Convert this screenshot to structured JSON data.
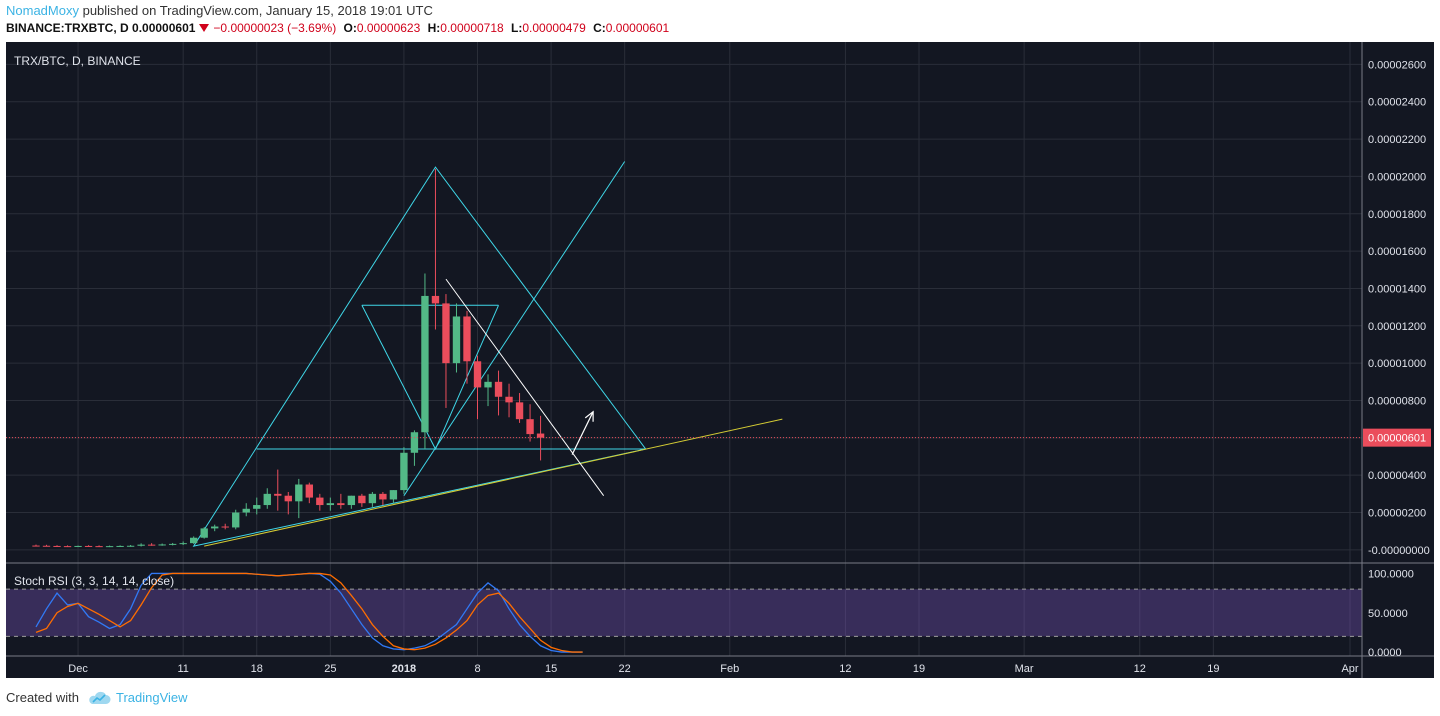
{
  "header": {
    "author": "NomadMoxy",
    "published_text": "published on TradingView.com, January 15, 2018 19:01 UTC",
    "symbol": "BINANCE:TRXBTC, D",
    "last_price": "0.00000601",
    "change": "−0.00000023 (−3.69%)",
    "open_label": "O:",
    "open_value": "0.00000623",
    "high_label": "H:",
    "high_value": "0.00000718",
    "low_label": "L:",
    "low_value": "0.00000479",
    "close_label": "C:",
    "close_value": "0.00000601"
  },
  "footer": {
    "created_with": "Created with",
    "brand": "TradingView"
  },
  "colors": {
    "background": "#131722",
    "grid": "#2a2e39",
    "up": "#53b987",
    "down": "#eb4d5c",
    "fib": "#3fd7e8",
    "trend_support": "#d4cc34",
    "trend_resistance": "#ffffff",
    "price_line": "#eb4d5c",
    "rsi_k": "#3179f5",
    "rsi_d": "#ff6d00",
    "rsi_band": "#7e57c2",
    "axis_text": "#e0e3eb"
  },
  "chart_data": [
    {
      "type": "candlestick",
      "title": "TRX/BTC, D, BINANCE",
      "y_ticks": [
        0,
        2e-06,
        4e-06,
        6e-06,
        8e-06,
        1e-05,
        1.2e-05,
        1.4e-05,
        1.6e-05,
        1.8e-05,
        2e-05,
        2.2e-05,
        2.4e-05,
        2.6e-05
      ],
      "y_tick_labels": [
        "-0.00000000",
        "0.00000200",
        "0.00000400",
        "0.00000600",
        "0.00000800",
        "0.00001000",
        "0.00001200",
        "0.00001400",
        "0.00001600",
        "0.00001800",
        "0.00002000",
        "0.00002200",
        "0.00002400",
        "0.00002600"
      ],
      "ylim": [
        -6.5e-07,
        2.72e-05
      ],
      "x_start": "2017-11-27",
      "x_end": "2018-04-01",
      "x_ticks": [
        {
          "date": "2017-12-01",
          "label": "Dec"
        },
        {
          "date": "2017-12-11",
          "label": "11"
        },
        {
          "date": "2017-12-18",
          "label": "18"
        },
        {
          "date": "2017-12-25",
          "label": "25"
        },
        {
          "date": "2018-01-01",
          "label": "2018",
          "bold": true
        },
        {
          "date": "2018-01-08",
          "label": "8"
        },
        {
          "date": "2018-01-15",
          "label": "15"
        },
        {
          "date": "2018-01-22",
          "label": "22"
        },
        {
          "date": "2018-02-01",
          "label": "Feb"
        },
        {
          "date": "2018-02-12",
          "label": "12"
        },
        {
          "date": "2018-02-19",
          "label": "19"
        },
        {
          "date": "2018-03-01",
          "label": "Mar"
        },
        {
          "date": "2018-03-12",
          "label": "12"
        },
        {
          "date": "2018-03-19",
          "label": "19"
        },
        {
          "date": "2018-04-01",
          "label": "Apr"
        }
      ],
      "last_price_label": "0.00000601",
      "last_price": 6.01e-06,
      "candles": [
        {
          "date": "2017-11-27",
          "o": 2.3e-07,
          "h": 2.8e-07,
          "l": 1.8e-07,
          "c": 2.2e-07
        },
        {
          "date": "2017-11-28",
          "o": 2.2e-07,
          "h": 2.7e-07,
          "l": 1.8e-07,
          "c": 2.1e-07
        },
        {
          "date": "2017-11-29",
          "o": 2.1e-07,
          "h": 2.5e-07,
          "l": 1.6e-07,
          "c": 2e-07
        },
        {
          "date": "2017-11-30",
          "o": 2e-07,
          "h": 2.4e-07,
          "l": 1.6e-07,
          "c": 1.9e-07
        },
        {
          "date": "2017-12-01",
          "o": 1.9e-07,
          "h": 2.3e-07,
          "l": 1.5e-07,
          "c": 2.1e-07
        },
        {
          "date": "2017-12-02",
          "o": 2.1e-07,
          "h": 2.5e-07,
          "l": 1.7e-07,
          "c": 2e-07
        },
        {
          "date": "2017-12-03",
          "o": 2e-07,
          "h": 2.4e-07,
          "l": 1.6e-07,
          "c": 1.9e-07
        },
        {
          "date": "2017-12-04",
          "o": 1.9e-07,
          "h": 2.3e-07,
          "l": 1.5e-07,
          "c": 2e-07
        },
        {
          "date": "2017-12-05",
          "o": 2e-07,
          "h": 2.4e-07,
          "l": 1.6e-07,
          "c": 2.1e-07
        },
        {
          "date": "2017-12-06",
          "o": 2.1e-07,
          "h": 2.6e-07,
          "l": 1.7e-07,
          "c": 2.2e-07
        },
        {
          "date": "2017-12-07",
          "o": 2.2e-07,
          "h": 3.5e-07,
          "l": 1.8e-07,
          "c": 2.8e-07
        },
        {
          "date": "2017-12-08",
          "o": 2.8e-07,
          "h": 3.6e-07,
          "l": 2.2e-07,
          "c": 2.7e-07
        },
        {
          "date": "2017-12-09",
          "o": 2.7e-07,
          "h": 3.4e-07,
          "l": 2.2e-07,
          "c": 2.9e-07
        },
        {
          "date": "2017-12-10",
          "o": 2.9e-07,
          "h": 3.7e-07,
          "l": 2.4e-07,
          "c": 3.2e-07
        },
        {
          "date": "2017-12-11",
          "o": 3.2e-07,
          "h": 4.5e-07,
          "l": 2.6e-07,
          "c": 3.6e-07
        },
        {
          "date": "2017-12-12",
          "o": 3.6e-07,
          "h": 7.2e-07,
          "l": 3.2e-07,
          "c": 6.5e-07
        },
        {
          "date": "2017-12-13",
          "o": 6.5e-07,
          "h": 1.22e-06,
          "l": 6e-07,
          "c": 1.15e-06
        },
        {
          "date": "2017-12-14",
          "o": 1.15e-06,
          "h": 1.35e-06,
          "l": 1e-06,
          "c": 1.25e-06
        },
        {
          "date": "2017-12-15",
          "o": 1.25e-06,
          "h": 1.4e-06,
          "l": 1.1e-06,
          "c": 1.2e-06
        },
        {
          "date": "2017-12-16",
          "o": 1.2e-06,
          "h": 2.15e-06,
          "l": 1.1e-06,
          "c": 2e-06
        },
        {
          "date": "2017-12-17",
          "o": 2e-06,
          "h": 2.5e-06,
          "l": 1.8e-06,
          "c": 2.2e-06
        },
        {
          "date": "2017-12-18",
          "o": 2.2e-06,
          "h": 2.8e-06,
          "l": 1.9e-06,
          "c": 2.4e-06
        },
        {
          "date": "2017-12-19",
          "o": 2.4e-06,
          "h": 3.3e-06,
          "l": 2.2e-06,
          "c": 3e-06
        },
        {
          "date": "2017-12-20",
          "o": 3e-06,
          "h": 4.3e-06,
          "l": 2.1e-06,
          "c": 2.9e-06
        },
        {
          "date": "2017-12-21",
          "o": 2.9e-06,
          "h": 3.1e-06,
          "l": 1.9e-06,
          "c": 2.6e-06
        },
        {
          "date": "2017-12-22",
          "o": 2.6e-06,
          "h": 3.8e-06,
          "l": 1.7e-06,
          "c": 3.5e-06
        },
        {
          "date": "2017-12-23",
          "o": 3.5e-06,
          "h": 3.6e-06,
          "l": 2.5e-06,
          "c": 2.8e-06
        },
        {
          "date": "2017-12-24",
          "o": 2.8e-06,
          "h": 3e-06,
          "l": 2.1e-06,
          "c": 2.4e-06
        },
        {
          "date": "2017-12-25",
          "o": 2.4e-06,
          "h": 2.8e-06,
          "l": 2.1e-06,
          "c": 2.5e-06
        },
        {
          "date": "2017-12-26",
          "o": 2.5e-06,
          "h": 3e-06,
          "l": 2.2e-06,
          "c": 2.4e-06
        },
        {
          "date": "2017-12-27",
          "o": 2.4e-06,
          "h": 2.9e-06,
          "l": 2.2e-06,
          "c": 2.9e-06
        },
        {
          "date": "2017-12-28",
          "o": 2.9e-06,
          "h": 3e-06,
          "l": 2.3e-06,
          "c": 2.5e-06
        },
        {
          "date": "2017-12-29",
          "o": 2.5e-06,
          "h": 3.1e-06,
          "l": 2.3e-06,
          "c": 3e-06
        },
        {
          "date": "2017-12-30",
          "o": 3e-06,
          "h": 3.1e-06,
          "l": 2.4e-06,
          "c": 2.7e-06
        },
        {
          "date": "2017-12-31",
          "o": 2.7e-06,
          "h": 3.2e-06,
          "l": 2.5e-06,
          "c": 3.2e-06
        },
        {
          "date": "2018-01-01",
          "o": 3.2e-06,
          "h": 5.5e-06,
          "l": 3e-06,
          "c": 5.2e-06
        },
        {
          "date": "2018-01-02",
          "o": 5.2e-06,
          "h": 6.4e-06,
          "l": 4.5e-06,
          "c": 6.3e-06
        },
        {
          "date": "2018-01-03",
          "o": 6.3e-06,
          "h": 1.48e-05,
          "l": 5.4e-06,
          "c": 1.36e-05
        },
        {
          "date": "2018-01-04",
          "o": 1.36e-05,
          "h": 2.04e-05,
          "l": 1.18e-05,
          "c": 1.32e-05
        },
        {
          "date": "2018-01-05",
          "o": 1.32e-05,
          "h": 1.37e-05,
          "l": 7.6e-06,
          "c": 1e-05
        },
        {
          "date": "2018-01-06",
          "o": 1e-05,
          "h": 1.32e-05,
          "l": 9.5e-06,
          "c": 1.25e-05
        },
        {
          "date": "2018-01-07",
          "o": 1.25e-05,
          "h": 1.28e-05,
          "l": 8.9e-06,
          "c": 1.01e-05
        },
        {
          "date": "2018-01-08",
          "o": 1.01e-05,
          "h": 1.04e-05,
          "l": 7e-06,
          "c": 8.7e-06
        },
        {
          "date": "2018-01-09",
          "o": 8.7e-06,
          "h": 9.4e-06,
          "l": 7.7e-06,
          "c": 9e-06
        },
        {
          "date": "2018-01-10",
          "o": 9e-06,
          "h": 9.6e-06,
          "l": 7.2e-06,
          "c": 8.2e-06
        },
        {
          "date": "2018-01-11",
          "o": 8.2e-06,
          "h": 8.9e-06,
          "l": 7.1e-06,
          "c": 7.9e-06
        },
        {
          "date": "2018-01-12",
          "o": 7.9e-06,
          "h": 8.4e-06,
          "l": 6.8e-06,
          "c": 7e-06
        },
        {
          "date": "2018-01-13",
          "o": 7e-06,
          "h": 7.8e-06,
          "l": 5.8e-06,
          "c": 6.2e-06
        },
        {
          "date": "2018-01-14",
          "o": 6.23e-06,
          "h": 7.18e-06,
          "l": 4.79e-06,
          "c": 6.01e-06
        }
      ],
      "drawings": {
        "fib_outer_triangle": [
          [
            "2017-12-12",
            2e-07
          ],
          [
            "2018-01-04",
            2.05e-05
          ],
          [
            "2018-01-24",
            5.4e-06
          ]
        ],
        "fib_inner_diamond": [
          [
            "2017-12-28",
            1.31e-05
          ],
          [
            "2018-01-04",
            5.4e-06
          ],
          [
            "2018-01-10",
            1.31e-05
          ]
        ],
        "fib_top_line": [
          [
            "2017-12-28",
            1.31e-05
          ],
          [
            "2018-01-10",
            1.31e-05
          ]
        ],
        "fib_bottom_line": [
          [
            "2017-12-18",
            5.4e-06
          ],
          [
            "2018-01-24",
            5.4e-06
          ]
        ],
        "fib_long_diagonal": [
          [
            "2018-01-01",
            2.9e-06
          ],
          [
            "2018-01-22",
            2.08e-05
          ]
        ],
        "support_trendline": [
          [
            "2017-12-13",
            2e-07
          ],
          [
            "2018-02-06",
            7e-06
          ]
        ],
        "resistance_trendline": [
          [
            "2018-01-05",
            1.45e-05
          ],
          [
            "2018-01-20",
            2.9e-06
          ]
        ],
        "arrow": [
          [
            "2018-01-17",
            5.1e-06
          ],
          [
            "2018-01-19",
            7.4e-06
          ]
        ]
      }
    },
    {
      "type": "line",
      "title": "Stoch RSI (3, 3, 14, 14, close)",
      "ylim": [
        -5,
        112
      ],
      "y_ticks": [
        0,
        50,
        100
      ],
      "y_tick_labels": [
        "0.0000",
        "50.0000",
        "100.0000"
      ],
      "bands": [
        20,
        80
      ],
      "series": [
        {
          "name": "K",
          "values": [
            32,
            55,
            75,
            60,
            62,
            45,
            38,
            30,
            35,
            55,
            85,
            100,
            100,
            100,
            100,
            100,
            100,
            100,
            100,
            100,
            100,
            99,
            98,
            97,
            98,
            99,
            100,
            99,
            90,
            75,
            55,
            35,
            18,
            8,
            4,
            3,
            5,
            8,
            15,
            25,
            35,
            55,
            75,
            88,
            78,
            55,
            35,
            20,
            8,
            2,
            0,
            0,
            0
          ]
        },
        {
          "name": "D",
          "values": [
            25,
            30,
            50,
            58,
            62,
            55,
            48,
            40,
            32,
            40,
            60,
            82,
            98,
            100,
            100,
            100,
            100,
            100,
            100,
            100,
            100,
            99,
            98,
            97,
            98,
            99,
            100,
            100,
            98,
            88,
            72,
            55,
            35,
            20,
            8,
            4,
            3,
            5,
            10,
            18,
            28,
            40,
            60,
            72,
            75,
            62,
            45,
            30,
            15,
            6,
            2,
            0,
            0
          ]
        }
      ]
    }
  ]
}
